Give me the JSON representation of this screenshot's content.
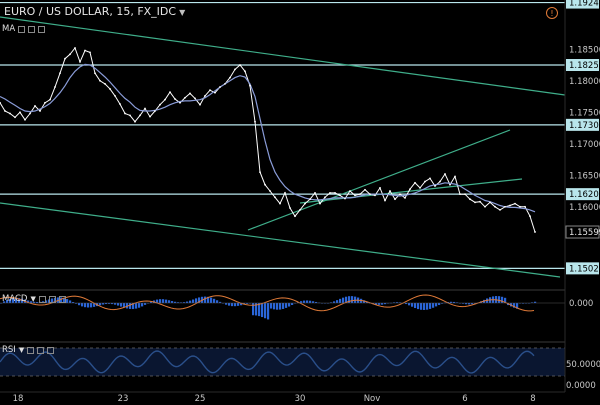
{
  "header": {
    "title": "EURO / US DOLLAR, 15, FX_IDC"
  },
  "indicators": {
    "ma": "MA",
    "macd": "MACD",
    "rsi": "RSI"
  },
  "alert_icon": "alert-circle-icon",
  "colors": {
    "background": "#000000",
    "price": "#ffffff",
    "ma_line": "#8a9cd8",
    "trend": "#3fae8a",
    "level_box": "#b9e6ec",
    "macd_hist": "#2a65d8",
    "macd_signal": "#e07a38",
    "rsi": "#2a4f8a"
  },
  "price_axis": {
    "ticks": [
      "1.18500",
      "1.18000",
      "1.17500",
      "1.17000",
      "1.16500",
      "1.16000"
    ],
    "level_labels": [
      "1.19241",
      "1.18250",
      "1.17300",
      "1.16200",
      "1.15599",
      "1.15022"
    ],
    "current_price": "1.15599"
  },
  "macd_axis": {
    "ticks": [
      "0.000"
    ]
  },
  "rsi_axis": {
    "ticks": [
      "50.0000",
      "0.0000"
    ]
  },
  "time_axis": {
    "labels": [
      "18",
      "23",
      "25",
      "30",
      "Nov",
      "6",
      "8"
    ]
  },
  "chart_data": {
    "type": "line",
    "title": "EURO / US DOLLAR, 15, FX_IDC",
    "xlabel": "",
    "ylabel": "",
    "ylim": [
      1.149,
      1.1935
    ],
    "x": [
      0,
      5,
      10,
      15,
      20,
      25,
      30,
      35,
      40,
      45,
      50,
      55,
      60,
      65,
      70,
      75,
      80,
      85,
      90,
      95,
      100,
      105,
      110,
      115,
      120,
      125,
      130,
      135,
      140,
      145,
      150,
      155,
      160,
      165,
      170,
      175,
      180,
      185,
      190,
      195,
      200,
      205,
      210,
      215,
      220,
      225,
      230,
      235,
      240,
      245,
      250,
      255,
      260,
      265,
      270,
      275,
      280,
      285,
      290,
      295,
      300,
      305,
      310,
      315,
      320,
      325,
      330,
      335,
      340,
      345,
      350,
      355,
      360,
      365,
      370,
      375,
      380,
      385,
      390,
      395,
      400,
      405,
      410,
      415,
      420,
      425,
      430,
      435,
      440,
      445,
      450,
      455,
      460,
      465,
      470,
      475,
      480,
      485,
      490,
      495,
      500,
      505,
      510,
      515,
      520,
      525,
      530,
      535
    ],
    "series": [
      {
        "values": [
          1.1765,
          1.1752,
          1.1748,
          1.1742,
          1.175,
          1.1738,
          1.1748,
          1.176,
          1.1752,
          1.1765,
          1.177,
          1.179,
          1.1812,
          1.1835,
          1.1842,
          1.1852,
          1.183,
          1.1848,
          1.1845,
          1.1812,
          1.18,
          1.1795,
          1.1787,
          1.1776,
          1.1763,
          1.1748,
          1.1745,
          1.1735,
          1.1745,
          1.1756,
          1.1743,
          1.1752,
          1.1762,
          1.177,
          1.1782,
          1.1771,
          1.1765,
          1.1773,
          1.178,
          1.1772,
          1.1762,
          1.1776,
          1.1785,
          1.1781,
          1.179,
          1.1795,
          1.1805,
          1.1818,
          1.1825,
          1.1815,
          1.1792,
          1.1735,
          1.1655,
          1.1635,
          1.1625,
          1.1615,
          1.1605,
          1.1622,
          1.1598,
          1.1585,
          1.1595,
          1.1605,
          1.1612,
          1.1622,
          1.1605,
          1.1615,
          1.1622,
          1.1622,
          1.1618,
          1.1613,
          1.1625,
          1.1618,
          1.162,
          1.1627,
          1.162,
          1.1618,
          1.163,
          1.161,
          1.1625,
          1.1612,
          1.162,
          1.1614,
          1.1628,
          1.1638,
          1.163,
          1.164,
          1.1645,
          1.1633,
          1.164,
          1.1652,
          1.1635,
          1.1648,
          1.162,
          1.162,
          1.1612,
          1.1607,
          1.1608,
          1.16,
          1.1607,
          1.16,
          1.1595,
          1.16,
          1.1602,
          1.1605,
          1.16,
          1.16,
          1.1585,
          1.156
        ]
      },
      {
        "values": [
          1.1775,
          1.1771,
          1.1766,
          1.1761,
          1.1756,
          1.1752,
          1.1751,
          1.1752,
          1.1755,
          1.1759,
          1.1764,
          1.1772,
          1.1781,
          1.1792,
          1.1805,
          1.1815,
          1.1822,
          1.1826,
          1.1825,
          1.182,
          1.1813,
          1.1806,
          1.1798,
          1.1789,
          1.178,
          1.1772,
          1.1766,
          1.1758,
          1.1753,
          1.1752,
          1.1752,
          1.1753,
          1.1755,
          1.1758,
          1.1762,
          1.1765,
          1.1767,
          1.1768,
          1.1768,
          1.1769,
          1.177,
          1.1773,
          1.1778,
          1.1784,
          1.179,
          1.1795,
          1.18,
          1.1805,
          1.1808,
          1.1806,
          1.1795,
          1.1775,
          1.174,
          1.1705,
          1.1675,
          1.1655,
          1.1642,
          1.1632,
          1.1625,
          1.162,
          1.1617,
          1.1614,
          1.1612,
          1.1611,
          1.1611,
          1.1612,
          1.1613,
          1.1614,
          1.1614,
          1.1614,
          1.1614,
          1.1615,
          1.1617,
          1.1619,
          1.162,
          1.162,
          1.162,
          1.162,
          1.1619,
          1.1618,
          1.1617,
          1.1618,
          1.162,
          1.1622,
          1.1625,
          1.1629,
          1.1633,
          1.1635,
          1.1636,
          1.1638,
          1.1637,
          1.1636,
          1.1633,
          1.1628,
          1.1623,
          1.1618,
          1.1614,
          1.161,
          1.1608,
          1.1605,
          1.1602,
          1.16,
          1.1599,
          1.1599,
          1.1598,
          1.1597,
          1.1595,
          1.1592
        ]
      }
    ]
  }
}
